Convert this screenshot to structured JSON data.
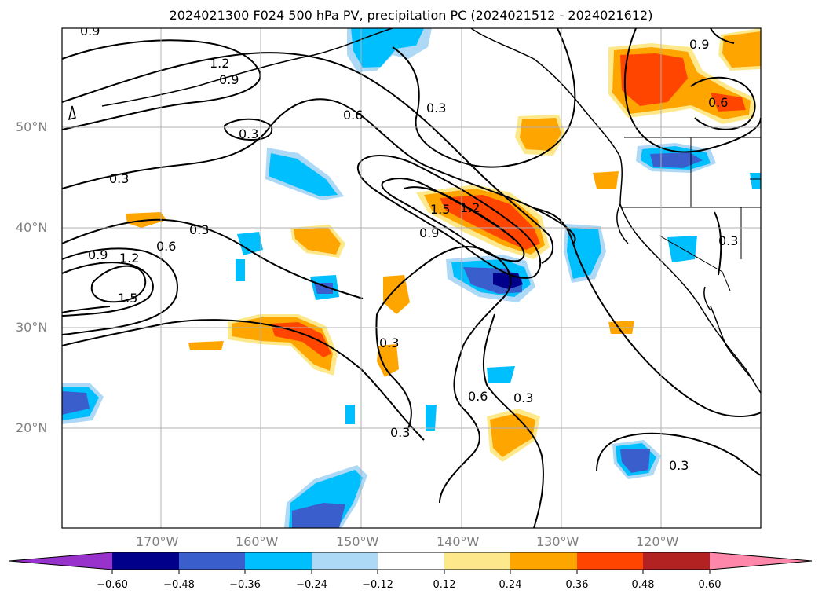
{
  "title": "2024021300 F024 500 hPa PV, precipitation PC (2024021512 - 2024021612)",
  "lat_labels": [
    "50°N",
    "40°N",
    "30°N",
    "20°N"
  ],
  "lon_labels": [
    "170°W",
    "160°W",
    "150°W",
    "140°W",
    "130°W",
    "120°W"
  ],
  "contour_labels": [
    "0.9",
    "1.2",
    "0.9",
    "0.3",
    "0.3",
    "0.3",
    "0.9",
    "1.2",
    "1.5",
    "0.6",
    "0.6",
    "0.3",
    "1.5",
    "1.2",
    "0.9",
    "0.3",
    "0.6",
    "0.3",
    "0.3",
    "0.9",
    "0.6",
    "0.3",
    "0.3"
  ],
  "colorbar": {
    "ticks": [
      "−0.60",
      "−0.48",
      "−0.36",
      "−0.24",
      "−0.12",
      "0.12",
      "0.24",
      "0.36",
      "0.48",
      "0.60"
    ],
    "colors": [
      "#9932cc",
      "#00008b",
      "#3a5fcd",
      "#00bfff",
      "#add8f6",
      "#ffffff",
      "#fde98c",
      "#ffa500",
      "#ff4500",
      "#b22222",
      "#ff88aa"
    ]
  }
}
